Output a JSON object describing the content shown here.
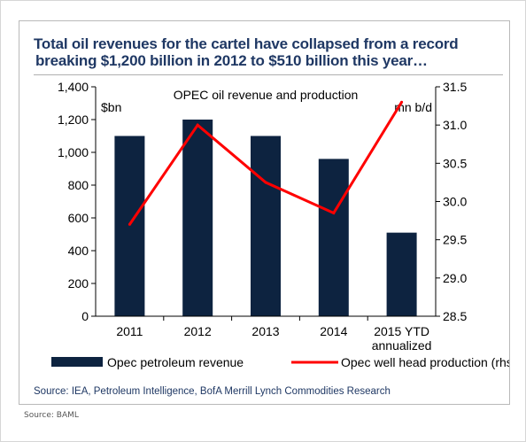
{
  "headline": {
    "line1": "Total oil revenues for the cartel have collapsed from a record",
    "line2": "breaking $1,200 billion in 2012 to $510 billion this year…"
  },
  "chart_data": {
    "type": "bar",
    "title": "OPEC oil revenue and production",
    "categories": [
      "2011",
      "2012",
      "2013",
      "2014",
      "2015 YTD annualized"
    ],
    "category_lines": [
      [
        "2011"
      ],
      [
        "2012"
      ],
      [
        "2013"
      ],
      [
        "2014"
      ],
      [
        "2015 YTD",
        "annualized"
      ]
    ],
    "y_left": {
      "unit_label": "$bn",
      "ylim": [
        0,
        1400
      ],
      "ticks": [
        "0",
        "200",
        "400",
        "600",
        "800",
        "1,000",
        "1,200",
        "1,400"
      ],
      "tick_values": [
        0,
        200,
        400,
        600,
        800,
        1000,
        1200,
        1400
      ]
    },
    "y_right": {
      "unit_label": "mn b/d",
      "ylim": [
        28.5,
        31.5
      ],
      "ticks": [
        "28.5",
        "29.0",
        "29.5",
        "30.0",
        "30.5",
        "31.0",
        "31.5"
      ],
      "tick_values": [
        28.5,
        29.0,
        29.5,
        30.0,
        30.5,
        31.0,
        31.5
      ]
    },
    "series": [
      {
        "name": "Opec petroleum revenue",
        "kind": "bar",
        "axis": "left",
        "color": "#0d2340",
        "values": [
          1100,
          1200,
          1100,
          960,
          510
        ]
      },
      {
        "name": "Opec well head production (rhs)",
        "kind": "line",
        "axis": "right",
        "color": "#ff0000",
        "values": [
          29.7,
          31.0,
          30.25,
          29.85,
          31.3
        ]
      }
    ],
    "grid": false,
    "legend": "bottom"
  },
  "source_inner": "Source: IEA, Petroleum Intelligence, BofA Merrill Lynch Commodities Research",
  "source_outer": "Source: BAML"
}
